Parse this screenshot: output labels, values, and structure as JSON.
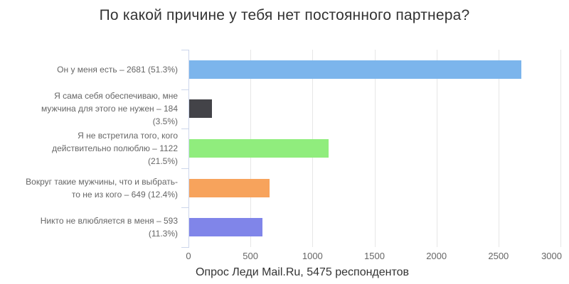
{
  "chart_data": {
    "type": "bar",
    "title": "По какой причине у тебя нет постоянного партнера?",
    "caption": "Опрос Леди Mail.Ru, 5475 респондентов",
    "categories": [
      "Он у меня есть – 2681 (51.3%)",
      "Я сама себя обеспечиваю, мне мужчина для этого не нужен – 184 (3.5%)",
      "Я не встретила того, кого действительно полюблю – 1122 (21.5%)",
      "Вокруг такие мужчины, что и выбрать-то не из кого – 649 (12.4%)",
      "Никто не влюбляется в меня – 593 (11.3%)"
    ],
    "values": [
      2681,
      184,
      1122,
      649,
      593
    ],
    "percentages": [
      51.3,
      3.5,
      21.5,
      12.4,
      11.3
    ],
    "bar_colors": [
      "#7cb5ec",
      "#434348",
      "#90ed7d",
      "#f7a35c",
      "#8085e9"
    ],
    "x_ticks": [
      0,
      500,
      1000,
      1500,
      2000,
      2500,
      3000
    ],
    "xlim": [
      0,
      3000
    ],
    "grid": true,
    "legend": "none",
    "orientation": "horizontal",
    "colors": {
      "axis_line": "#ccd6eb",
      "gridline": "#e6e6e6",
      "axis_label": "#666666",
      "title_text": "#333333",
      "caption_text": "#333333",
      "background": "#ffffff"
    }
  }
}
